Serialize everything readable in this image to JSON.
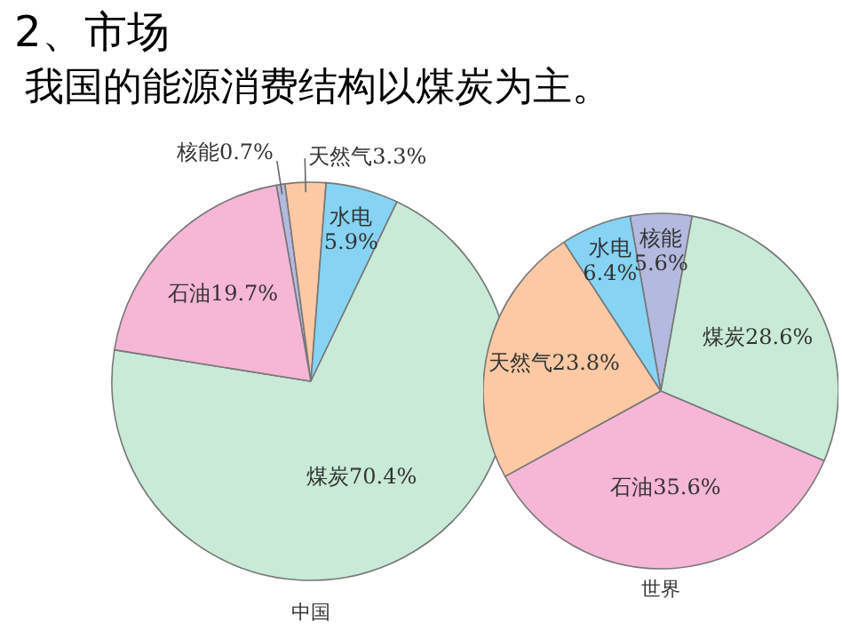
{
  "chart_data": [
    {
      "type": "pie",
      "title": "2、市场",
      "subtitle": "我国的能源消费结构以煤炭为主。",
      "xlabel": "中国",
      "categories": [
        "核能",
        "天然气",
        "水电",
        "煤炭",
        "石油"
      ],
      "values": [
        0.7,
        3.3,
        5.9,
        70.4,
        19.7
      ],
      "value_labels": [
        "0.7%",
        "3.3%",
        "5.9%",
        "70.4%",
        "19.7%"
      ],
      "colors": [
        "#b3b9df",
        "#fcc9a4",
        "#86d3f3",
        "#c8ead6",
        "#f6b6d6"
      ]
    },
    {
      "type": "pie",
      "xlabel": "世界",
      "categories": [
        "核能",
        "煤炭",
        "石油",
        "天然气",
        "水电"
      ],
      "values": [
        5.6,
        28.6,
        35.6,
        23.8,
        6.4
      ],
      "value_labels": [
        "5.6%",
        "28.6%",
        "35.6%",
        "23.8%",
        "6.4%"
      ],
      "colors": [
        "#b3b9df",
        "#c8ead6",
        "#f6b6d6",
        "#fcc9a4",
        "#86d3f3"
      ]
    }
  ]
}
